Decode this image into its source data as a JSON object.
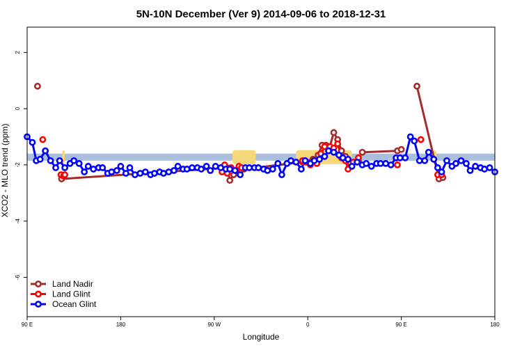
{
  "chart_data": {
    "type": "line",
    "title": "5N-10N December (Ver 9)   2014-09-06 to 2018-12-31",
    "xlabel": "Longitude",
    "ylabel": "XCO2 - MLO trend (ppm)",
    "xlim": [
      -90,
      270
    ],
    "ylim": [
      -7.4,
      2.9
    ],
    "x_ticks": [
      {
        "value": -90,
        "label": "90 E"
      },
      {
        "value": -18,
        "label": "180"
      },
      {
        "value": 54,
        "label": "90 W"
      },
      {
        "value": 126,
        "label": "0"
      },
      {
        "value": 198,
        "label": "90 E"
      },
      {
        "value": 270,
        "label": "180"
      }
    ],
    "y_ticks": [
      -6,
      -4,
      -2,
      0,
      2
    ],
    "grid": false,
    "legend_position": "bottom-left",
    "background": {
      "band": {
        "y_range": [
          -1.85,
          -1.6
        ],
        "color": "#a9bfdc"
      },
      "land_patches": [
        {
          "x_range": [
            -63,
            -61
          ],
          "color": "#f5d87a"
        },
        {
          "x_range": [
            68,
            86
          ],
          "color": "#f5d87a"
        },
        {
          "x_range": [
            117,
            160
          ],
          "color": "#f5d87a"
        },
        {
          "x_range": [
            222,
            225
          ],
          "color": "#f5d87a"
        }
      ]
    },
    "series": [
      {
        "name": "Land Nadir",
        "color": "#a52a2a",
        "points": [
          [
            -82,
            0.8
          ],
          [
            -63.5,
            -2.5
          ],
          [
            64,
            -2.1
          ],
          [
            66,
            -2.55
          ],
          [
            69,
            -2.35
          ],
          [
            73,
            -2.1
          ],
          [
            77,
            -2.15
          ],
          [
            122,
            -1.9
          ],
          [
            130,
            -1.8
          ],
          [
            134,
            -1.65
          ],
          [
            137,
            -1.3
          ],
          [
            140,
            -1.3
          ],
          [
            143,
            -1.35
          ],
          [
            146,
            -0.85
          ],
          [
            149,
            -1.1
          ],
          [
            152,
            -1.5
          ],
          [
            155,
            -1.7
          ],
          [
            159,
            -1.95
          ],
          [
            165,
            -1.85
          ],
          [
            168,
            -1.55
          ],
          [
            195,
            -1.5
          ],
          [
            198,
            -1.45
          ],
          [
            210,
            0.8
          ],
          [
            227,
            -2.5
          ],
          [
            230,
            -2.45
          ]
        ],
        "segments": [
          [
            1,
            2
          ],
          [
            2,
            3
          ],
          [
            3,
            4
          ],
          [
            4,
            5
          ],
          [
            6,
            7
          ],
          [
            7,
            8
          ],
          [
            8,
            9
          ],
          [
            9,
            10
          ],
          [
            10,
            11
          ],
          [
            11,
            12
          ],
          [
            12,
            13
          ],
          [
            13,
            14
          ],
          [
            14,
            15
          ],
          [
            15,
            16
          ],
          [
            16,
            17
          ],
          [
            17,
            18
          ],
          [
            19,
            20
          ],
          [
            22,
            23
          ]
        ]
      },
      {
        "name": "Land Glint",
        "color": "#ff0000",
        "points": [
          [
            -78,
            -1.1
          ],
          [
            -64,
            -2.35
          ],
          [
            -62,
            -2.4
          ],
          [
            -61,
            -2.35
          ],
          [
            60,
            -2.25
          ],
          [
            62,
            -2.0
          ],
          [
            64,
            -2.3
          ],
          [
            67,
            -2.1
          ],
          [
            71,
            -2.2
          ],
          [
            73,
            -2.05
          ],
          [
            75,
            -2.1
          ],
          [
            122,
            -1.85
          ],
          [
            125,
            -1.9
          ],
          [
            128,
            -2.0
          ],
          [
            131,
            -1.85
          ],
          [
            133,
            -1.95
          ],
          [
            136,
            -1.6
          ],
          [
            139,
            -1.35
          ],
          [
            143,
            -1.35
          ],
          [
            146,
            -1.4
          ],
          [
            149,
            -1.25
          ],
          [
            152,
            -1.75
          ],
          [
            155,
            -1.85
          ],
          [
            157,
            -2.15
          ],
          [
            161,
            -1.9
          ],
          [
            165,
            -1.75
          ],
          [
            195,
            -2.0
          ],
          [
            213,
            -1.1
          ],
          [
            226,
            -2.35
          ],
          [
            229,
            -2.35
          ]
        ],
        "segments": [
          [
            1,
            2
          ],
          [
            2,
            3
          ],
          [
            4,
            5
          ],
          [
            5,
            6
          ],
          [
            6,
            7
          ],
          [
            7,
            8
          ],
          [
            8,
            9
          ],
          [
            9,
            10
          ],
          [
            11,
            12
          ],
          [
            12,
            13
          ],
          [
            13,
            14
          ],
          [
            14,
            15
          ],
          [
            15,
            16
          ],
          [
            16,
            17
          ],
          [
            17,
            18
          ],
          [
            18,
            19
          ],
          [
            19,
            20
          ],
          [
            20,
            21
          ],
          [
            21,
            22
          ],
          [
            22,
            23
          ],
          [
            23,
            24
          ],
          [
            24,
            25
          ],
          [
            28,
            29
          ]
        ]
      },
      {
        "name": "Ocean Glint",
        "color": "#0000ff",
        "points": [
          [
            -90,
            -1.0
          ],
          [
            -86,
            -1.2
          ],
          [
            -83,
            -1.85
          ],
          [
            -80,
            -1.8
          ],
          [
            -76,
            -1.5
          ],
          [
            -72,
            -1.85
          ],
          [
            -68,
            -2.1
          ],
          [
            -65,
            -1.85
          ],
          [
            -61,
            -2.1
          ],
          [
            -57,
            -1.95
          ],
          [
            -54,
            -1.85
          ],
          [
            -50,
            -1.95
          ],
          [
            -46,
            -2.25
          ],
          [
            -43,
            -2.05
          ],
          [
            -39,
            -2.15
          ],
          [
            -35,
            -2.1
          ],
          [
            -32,
            -2.1
          ],
          [
            -28,
            -2.3
          ],
          [
            -25,
            -2.25
          ],
          [
            -21,
            -2.2
          ],
          [
            -18,
            -2.05
          ],
          [
            -14,
            -2.3
          ],
          [
            -11,
            -2.1
          ],
          [
            -7,
            -2.35
          ],
          [
            -3,
            -2.3
          ],
          [
            1,
            -2.25
          ],
          [
            5,
            -2.35
          ],
          [
            8,
            -2.3
          ],
          [
            12,
            -2.25
          ],
          [
            15,
            -2.3
          ],
          [
            19,
            -2.25
          ],
          [
            23,
            -2.2
          ],
          [
            26,
            -2.05
          ],
          [
            30,
            -2.15
          ],
          [
            33,
            -2.15
          ],
          [
            37,
            -2.1
          ],
          [
            41,
            -2.1
          ],
          [
            44,
            -2.15
          ],
          [
            48,
            -2.05
          ],
          [
            51,
            -2.2
          ],
          [
            55,
            -2.05
          ],
          [
            59,
            -2.1
          ],
          [
            63,
            -2.15
          ],
          [
            66,
            -2.15
          ],
          [
            70,
            -2.2
          ],
          [
            74,
            -2.35
          ],
          [
            78,
            -2.1
          ],
          [
            81,
            -2.1
          ],
          [
            85,
            -2.1
          ],
          [
            88,
            -2.1
          ],
          [
            92,
            -2.15
          ],
          [
            95,
            -2.2
          ],
          [
            99,
            -2.15
          ],
          [
            103,
            -1.95
          ],
          [
            106,
            -2.35
          ],
          [
            110,
            -1.95
          ],
          [
            113,
            -1.85
          ],
          [
            117,
            -1.9
          ],
          [
            121,
            -2.15
          ],
          [
            124,
            -1.85
          ],
          [
            128,
            -1.95
          ],
          [
            131,
            -1.85
          ],
          [
            135,
            -1.8
          ],
          [
            139,
            -1.7
          ],
          [
            142,
            -1.5
          ],
          [
            146,
            -1.55
          ],
          [
            150,
            -1.65
          ],
          [
            153,
            -1.75
          ],
          [
            157,
            -1.8
          ],
          [
            160,
            -2.05
          ],
          [
            164,
            -1.9
          ],
          [
            168,
            -2.0
          ],
          [
            171,
            -1.95
          ],
          [
            175,
            -2.05
          ],
          [
            179,
            -1.95
          ],
          [
            182,
            -1.95
          ],
          [
            186,
            -1.95
          ],
          [
            190,
            -2.0
          ],
          [
            194,
            -1.75
          ],
          [
            197,
            -1.75
          ],
          [
            201,
            -1.75
          ],
          [
            205,
            -1.0
          ],
          [
            208,
            -1.15
          ],
          [
            212,
            -1.85
          ],
          [
            216,
            -1.85
          ],
          [
            219,
            -1.55
          ],
          [
            223,
            -1.8
          ],
          [
            226,
            -2.1
          ],
          [
            229,
            -2.25
          ],
          [
            233,
            -1.85
          ],
          [
            237,
            -2.05
          ],
          [
            240,
            -1.95
          ],
          [
            244,
            -1.85
          ],
          [
            248,
            -1.95
          ],
          [
            251,
            -2.2
          ],
          [
            255,
            -2.05
          ],
          [
            259,
            -2.1
          ],
          [
            262,
            -2.15
          ],
          [
            266,
            -2.1
          ],
          [
            270,
            -2.25
          ]
        ]
      }
    ]
  }
}
